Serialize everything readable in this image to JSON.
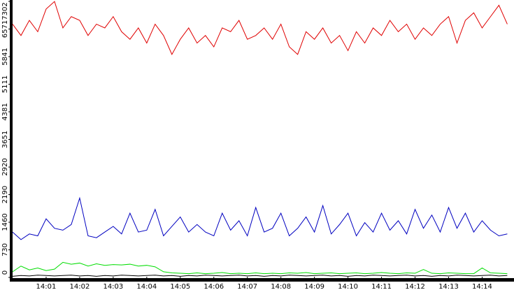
{
  "chart_data": {
    "type": "line",
    "x": [
      0,
      0.25,
      0.5,
      0.75,
      1,
      1.25,
      1.5,
      1.75,
      2,
      2.25,
      2.5,
      2.75,
      3,
      3.25,
      3.5,
      3.75,
      4,
      4.25,
      4.5,
      4.75,
      5,
      5.25,
      5.5,
      5.75,
      6,
      6.25,
      6.5,
      6.75,
      7,
      7.25,
      7.5,
      7.75,
      8,
      8.25,
      8.5,
      8.75,
      9,
      9.25,
      9.5,
      9.75,
      10,
      10.25,
      10.5,
      10.75,
      11,
      11.25,
      11.5,
      11.75,
      12,
      12.25,
      12.5,
      12.75,
      13,
      13.25,
      13.5,
      13.75,
      14,
      14.25,
      14.5,
      14.75
    ],
    "series": [
      {
        "color": "#e00000",
        "values": [
          6700,
          6400,
          6800,
          6500,
          7100,
          7300,
          6600,
          6900,
          6800,
          6400,
          6700,
          6600,
          6900,
          6500,
          6300,
          6600,
          6200,
          6700,
          6400,
          5900,
          6300,
          6600,
          6200,
          6400,
          6100,
          6600,
          6500,
          6800,
          6300,
          6400,
          6600,
          6300,
          6700,
          6100,
          5900,
          6500,
          6300,
          6600,
          6200,
          6400,
          6000,
          6500,
          6200,
          6600,
          6400,
          6800,
          6500,
          6700,
          6300,
          6600,
          6400,
          6700,
          6900,
          6200,
          6800,
          7000,
          6600,
          6900,
          7200,
          6700
        ]
      },
      {
        "color": "#0000c0",
        "values": [
          1200,
          1000,
          1150,
          1100,
          1550,
          1300,
          1250,
          1400,
          2100,
          1100,
          1050,
          1200,
          1350,
          1150,
          1700,
          1200,
          1250,
          1800,
          1100,
          1350,
          1600,
          1200,
          1400,
          1200,
          1100,
          1700,
          1250,
          1500,
          1100,
          1850,
          1200,
          1300,
          1700,
          1100,
          1300,
          1600,
          1200,
          1900,
          1150,
          1400,
          1700,
          1100,
          1450,
          1200,
          1700,
          1250,
          1500,
          1150,
          1800,
          1300,
          1650,
          1200,
          1850,
          1300,
          1700,
          1200,
          1500,
          1250,
          1100,
          1150
        ]
      },
      {
        "color": "#00dd00",
        "values": [
          150,
          300,
          200,
          250,
          180,
          220,
          400,
          350,
          380,
          300,
          360,
          320,
          340,
          330,
          350,
          300,
          320,
          280,
          150,
          120,
          110,
          100,
          120,
          100,
          110,
          130,
          100,
          110,
          100,
          120,
          100,
          110,
          100,
          120,
          110,
          130,
          100,
          110,
          120,
          100,
          110,
          120,
          100,
          110,
          130,
          110,
          100,
          120,
          110,
          210,
          110,
          100,
          120,
          110,
          100,
          100,
          250,
          120,
          110,
          100
        ]
      },
      {
        "color": "#000000",
        "values": [
          30,
          50,
          40,
          60,
          50,
          40,
          50,
          60,
          40,
          50,
          30,
          50,
          40,
          60,
          50,
          40,
          50,
          60,
          40,
          50,
          30,
          50,
          40,
          60,
          50,
          40,
          50,
          60,
          40,
          50,
          30,
          50,
          40,
          60,
          50,
          40,
          50,
          60,
          40,
          50,
          30,
          50,
          40,
          60,
          50,
          40,
          50,
          60,
          40,
          50,
          30,
          50,
          40,
          60,
          50,
          40,
          50,
          60,
          40,
          50
        ]
      }
    ],
    "xlim": [
      0,
      14.95
    ],
    "xticks": [
      {
        "value": 1,
        "label": "14:01"
      },
      {
        "value": 2,
        "label": "14:02"
      },
      {
        "value": 3,
        "label": "14:03"
      },
      {
        "value": 4,
        "label": "14:04"
      },
      {
        "value": 5,
        "label": "14:05"
      },
      {
        "value": 6,
        "label": "14:06"
      },
      {
        "value": 7,
        "label": "14:07"
      },
      {
        "value": 8,
        "label": "14:08"
      },
      {
        "value": 9,
        "label": "14:09"
      },
      {
        "value": 10,
        "label": "14:10"
      },
      {
        "value": 11,
        "label": "14:11"
      },
      {
        "value": 12,
        "label": "14:12"
      },
      {
        "value": 13,
        "label": "14:13"
      },
      {
        "value": 14,
        "label": "14:14"
      }
    ],
    "ylim": [
      0,
      7302
    ],
    "yticks": [
      0,
      730,
      1460,
      2190,
      2920,
      3651,
      4381,
      5111,
      5841,
      6571,
      7302
    ]
  }
}
